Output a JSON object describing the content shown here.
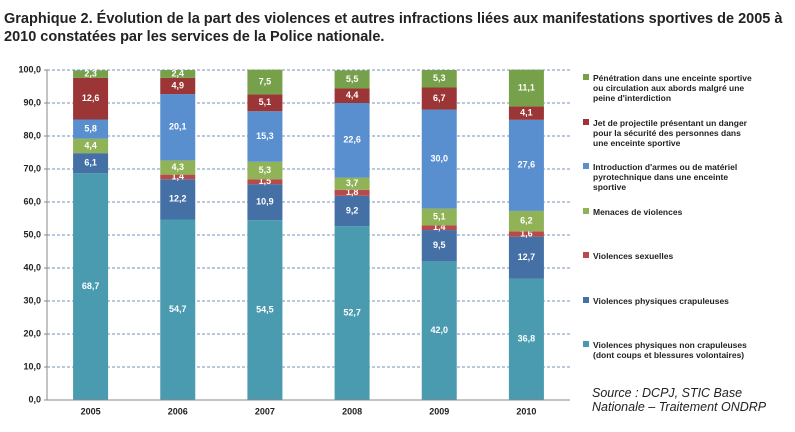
{
  "chart_data": {
    "type": "stacked_bar",
    "title": "Graphique 2. Évolution de la part des violences et autres infractions liées aux manifestations sportives de 2005 à 2010 constatées par les services de la Police nationale.",
    "source": "Source : DCPJ, STIC Base Nationale – Traitement ONDRP",
    "categories": [
      "2005",
      "2006",
      "2007",
      "2008",
      "2009",
      "2010"
    ],
    "ylim": [
      0,
      100
    ],
    "yticks": [
      {
        "value": 0,
        "label": "0,0"
      },
      {
        "value": 10,
        "label": "10,0"
      },
      {
        "value": 20,
        "label": "20,0"
      },
      {
        "value": 30,
        "label": "30,0"
      },
      {
        "value": 40,
        "label": "40,0"
      },
      {
        "value": 50,
        "label": "50,0"
      },
      {
        "value": 60,
        "label": "60,0"
      },
      {
        "value": 70,
        "label": "70,0"
      },
      {
        "value": 80,
        "label": "80,0"
      },
      {
        "value": 90,
        "label": "90,0"
      },
      {
        "value": 100,
        "label": "100,0"
      }
    ],
    "grid": true,
    "legend": "right",
    "series": [
      {
        "name": "Violences physiques non crapuleuses (dont coups et blessures volontaires)",
        "color": "#4a9bb0",
        "values": [
          68.7,
          54.7,
          54.5,
          52.7,
          42.0,
          36.8
        ],
        "value_labels": [
          "68,7",
          "54,7",
          "54,5",
          "52,7",
          "42,0",
          "36,8"
        ]
      },
      {
        "name": "Violences physiques crapuleuses",
        "color": "#4570a6",
        "values": [
          6.1,
          12.2,
          10.9,
          9.2,
          9.5,
          12.7
        ],
        "value_labels": [
          "6,1",
          "12,2",
          "10,9",
          "9,2",
          "9,5",
          "12,7"
        ]
      },
      {
        "name": "Violences sexuelles",
        "color": "#b84a4a",
        "values": [
          null,
          1.4,
          1.5,
          1.8,
          1.4,
          1.6
        ],
        "value_labels": [
          null,
          "1,4",
          "1,5",
          "1,8",
          "1,4",
          "1,6"
        ]
      },
      {
        "name": "Menaces de violences",
        "color": "#8fb356",
        "values": [
          4.4,
          4.3,
          5.3,
          3.7,
          5.1,
          6.2
        ],
        "value_labels": [
          "4,4",
          "4,3",
          "5,3",
          "3,7",
          "5,1",
          "6,2"
        ]
      },
      {
        "name": "Introduction d'armes ou de matériel pyrotechnique dans une enceinte sportive",
        "color": "#5a8fcf",
        "values": [
          5.8,
          20.1,
          15.3,
          22.6,
          30.0,
          27.6
        ],
        "value_labels": [
          "5,8",
          "20,1",
          "15,3",
          "22,6",
          "30,0",
          "27,6"
        ]
      },
      {
        "name": "Jet de projectile présentant un danger pour la sécurité des personnes dans une enceinte sportive",
        "color": "#9c3636",
        "values": [
          12.6,
          4.9,
          5.1,
          4.4,
          6.7,
          4.1
        ],
        "value_labels": [
          "12,6",
          "4,9",
          "5,1",
          "4,4",
          "6,7",
          "4,1"
        ]
      },
      {
        "name": "Pénétration dans une enceinte sportive ou circulation aux abords malgré une peine d'interdiction",
        "color": "#76a04a",
        "values": [
          2.3,
          2.4,
          7.5,
          5.5,
          5.3,
          11.1
        ],
        "value_labels": [
          "2,3",
          "2,4",
          "7,5",
          "5,5",
          "5,3",
          "11,1"
        ]
      }
    ]
  }
}
